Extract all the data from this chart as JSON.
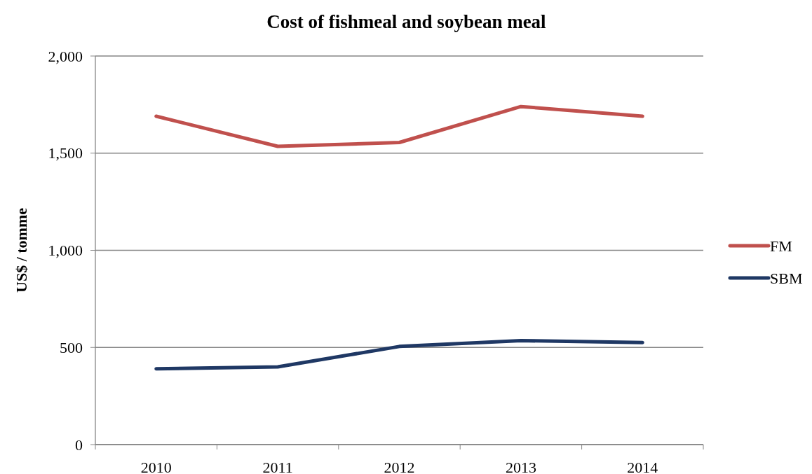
{
  "chart_data": {
    "type": "line",
    "title": "Cost of fishmeal and soybean meal",
    "ylabel": "US$ / tomme",
    "categories": [
      "2010",
      "2011",
      "2012",
      "2013",
      "2014"
    ],
    "series": [
      {
        "name": "FM",
        "color": "#c0504d",
        "values": [
          1690,
          1535,
          1555,
          1740,
          1690
        ]
      },
      {
        "name": "SBM",
        "color": "#1f3864",
        "values": [
          390,
          400,
          505,
          535,
          525
        ]
      }
    ],
    "ylim": [
      0,
      2000
    ],
    "yticks": [
      {
        "value": 0,
        "label": "0"
      },
      {
        "value": 500,
        "label": "500"
      },
      {
        "value": 1000,
        "label": "1,000"
      },
      {
        "value": 1500,
        "label": "1,500"
      },
      {
        "value": 2000,
        "label": "2,000"
      }
    ],
    "grid": "y",
    "legend": "right",
    "marker": "none",
    "line_style": "solid"
  }
}
